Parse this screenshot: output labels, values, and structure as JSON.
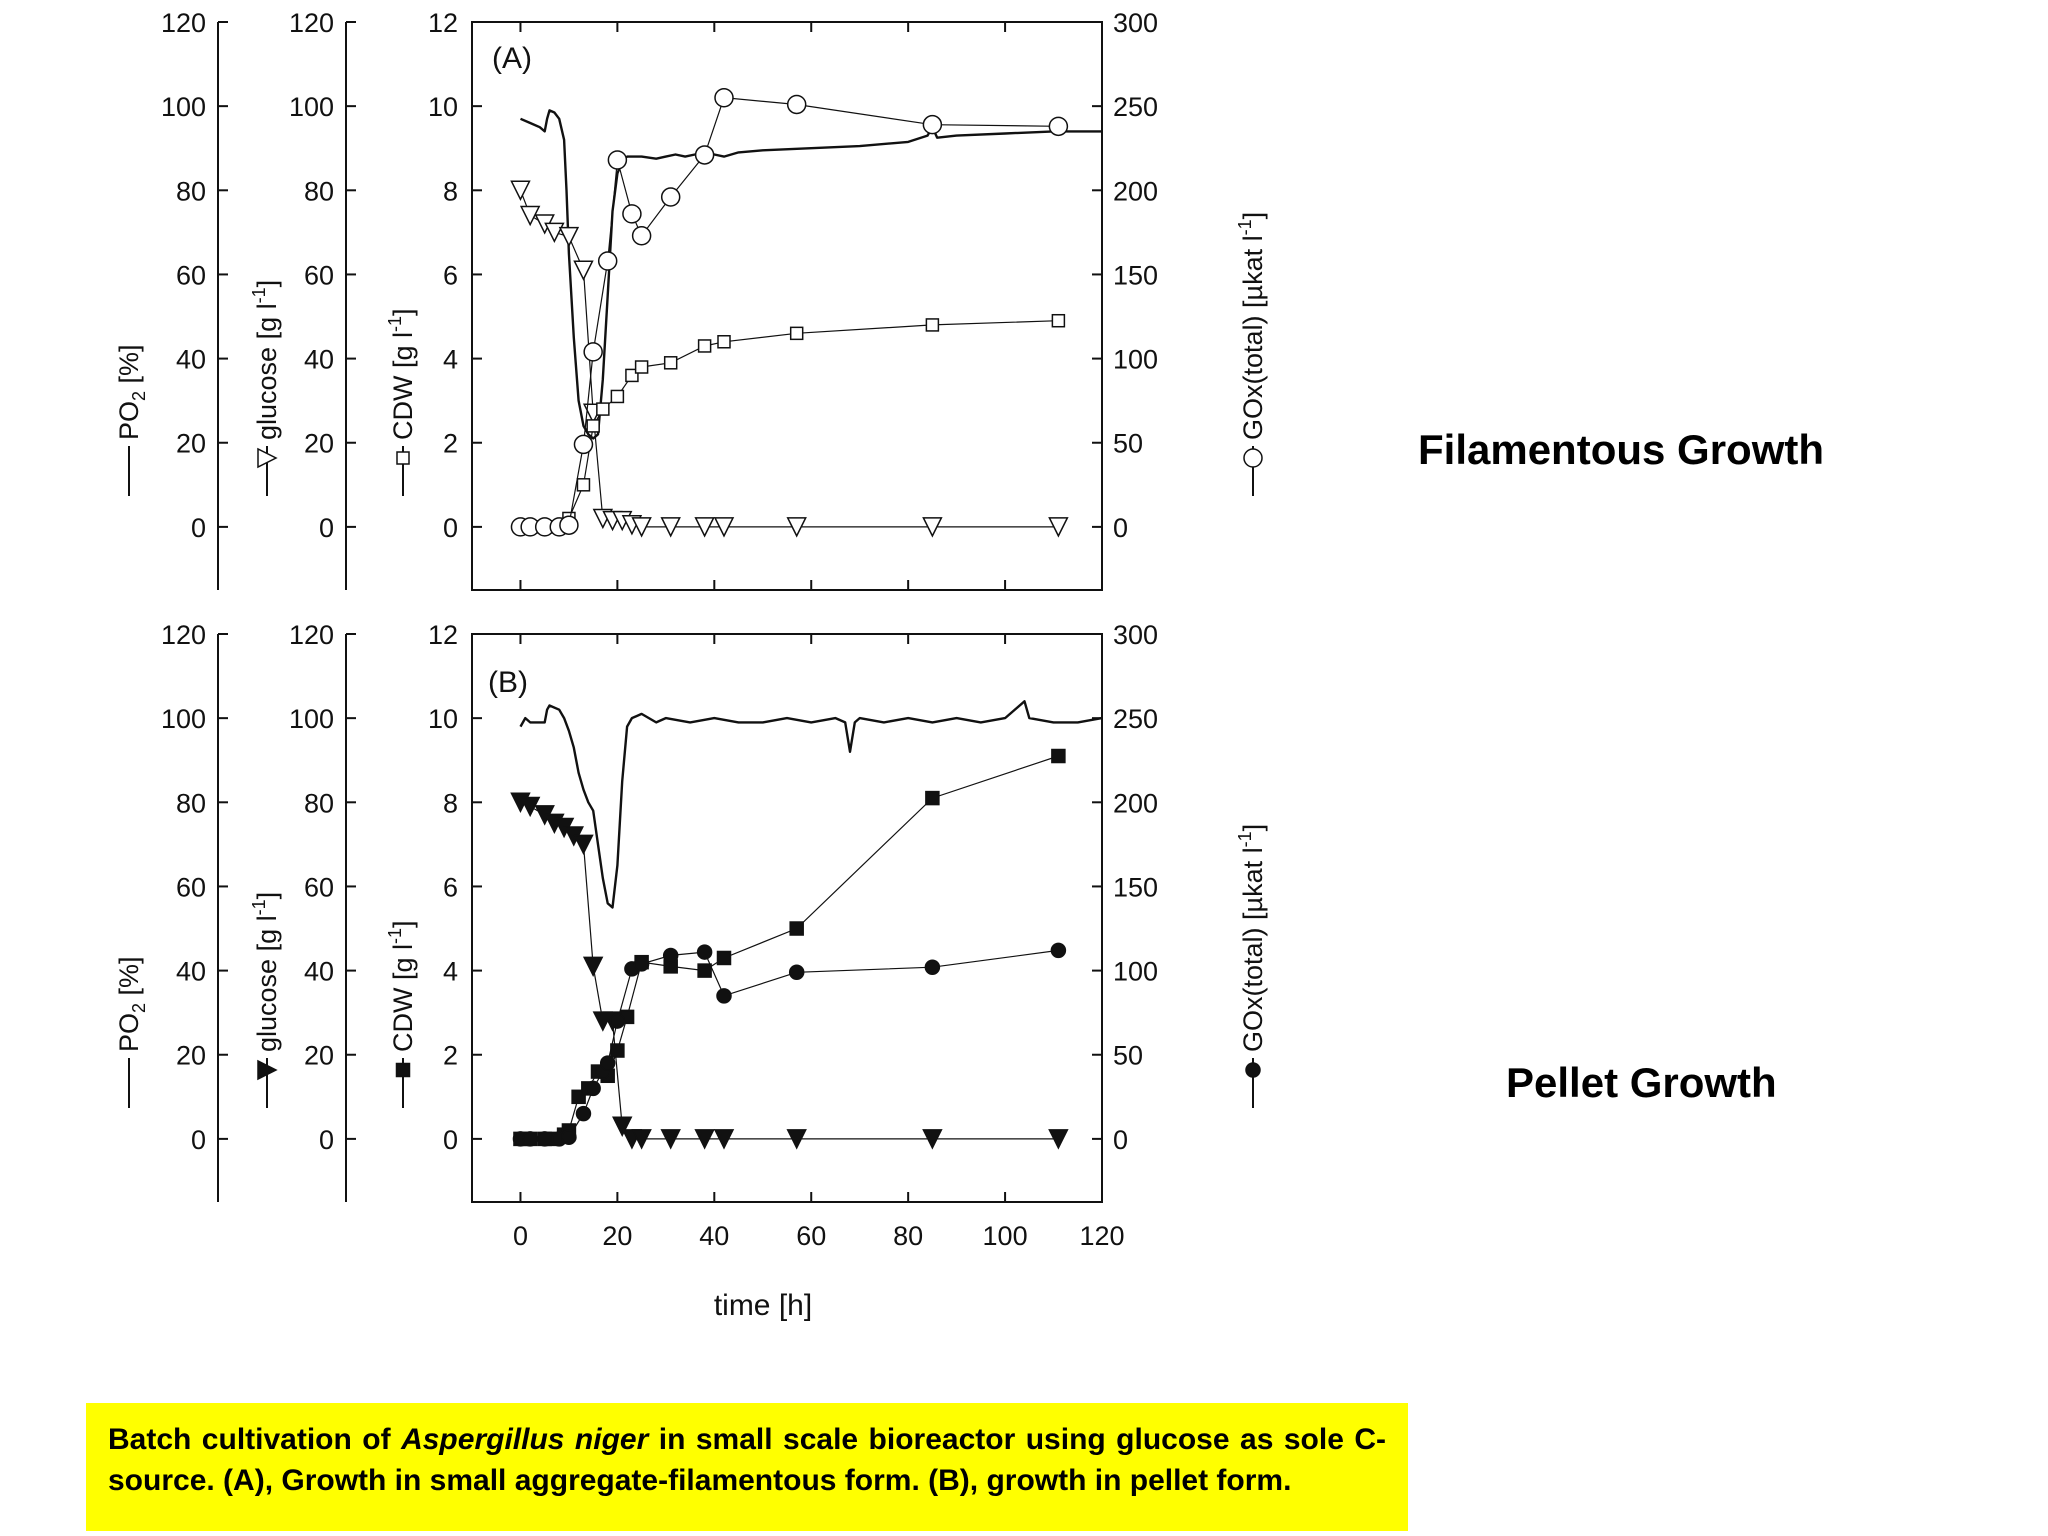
{
  "colors": {
    "background": "#ffffff",
    "ink": "#111111",
    "caption_bg": "#ffff00"
  },
  "labels": {
    "filamentous": "Filamentous Growth",
    "pellet": "Pellet Growth"
  },
  "caption": {
    "part1": "Batch cultivation of ",
    "species": "Aspergillus niger",
    "part2": " in small scale bioreactor using glucose as sole C-source. (A), Growth in small aggregate-filamentous form. (B), growth in pellet form."
  },
  "chart_data": [
    {
      "type": "line",
      "panel_label": "(A)",
      "xlabel": "time [h]",
      "xlim": [
        -10,
        120
      ],
      "x_ticks": [
        0,
        20,
        40,
        60,
        80,
        100,
        120
      ],
      "axes": {
        "po2": {
          "label": "PO",
          "label_sub": "2",
          "label_tail": " [%]",
          "ylim": [
            -15,
            120
          ],
          "ticks": [
            0,
            20,
            40,
            60,
            80,
            100,
            120
          ]
        },
        "glucose": {
          "label": "glucose [g l",
          "label_sup": "-1",
          "label_tail": "]",
          "ylim": [
            -15,
            120
          ],
          "ticks": [
            0,
            20,
            40,
            60,
            80,
            100,
            120
          ]
        },
        "cdw": {
          "label": "CDW [g l",
          "label_sup": "-1",
          "label_tail": "]",
          "ylim": [
            -1.5,
            12
          ],
          "ticks": [
            0,
            2,
            4,
            6,
            8,
            10,
            12
          ]
        },
        "gox": {
          "label": "GOx(total) [µkat l",
          "label_sup": "-1",
          "label_tail": "]",
          "ylim": [
            -37.5,
            300
          ],
          "ticks": [
            0,
            50,
            100,
            150,
            200,
            250,
            300
          ]
        }
      },
      "series": [
        {
          "id": "po2",
          "marker": "line",
          "x": [
            0,
            2,
            4,
            5,
            5.5,
            6,
            7,
            8,
            9,
            9.5,
            10,
            11,
            12,
            13,
            14,
            15,
            16,
            17,
            18,
            19,
            20,
            21,
            22,
            25,
            28,
            30,
            32,
            34,
            36,
            38,
            40,
            42,
            45,
            50,
            60,
            70,
            80,
            84,
            85,
            86,
            90,
            100,
            110,
            120
          ],
          "y": [
            97,
            96,
            95,
            94,
            97,
            99,
            98.5,
            97,
            92,
            80,
            65,
            45,
            30,
            24,
            22,
            21,
            22,
            35,
            55,
            75,
            84,
            87,
            88,
            88,
            87.5,
            88,
            88.5,
            88,
            88.5,
            88,
            88.5,
            88,
            89,
            89.5,
            90,
            90.5,
            91.5,
            93,
            95,
            92.5,
            93,
            93.5,
            94,
            94
          ]
        },
        {
          "id": "glucose",
          "marker": "triangle-down-open",
          "x": [
            0,
            2,
            5,
            7,
            10,
            13,
            15,
            17,
            19,
            21,
            23,
            25,
            31,
            38,
            42,
            57,
            85,
            111
          ],
          "y": [
            80,
            74,
            72,
            70,
            69,
            61,
            27,
            2,
            1.5,
            1.5,
            0.5,
            0,
            0,
            0,
            0,
            0,
            0,
            0
          ]
        },
        {
          "id": "cdw",
          "marker": "square-open",
          "x": [
            0,
            2,
            4,
            6,
            8,
            10,
            13,
            15,
            17,
            20,
            23,
            25,
            31,
            38,
            42,
            57,
            85,
            111
          ],
          "y": [
            0,
            0,
            0,
            0,
            0,
            0.2,
            1,
            2.4,
            2.8,
            3.1,
            3.6,
            3.8,
            3.9,
            4.3,
            4.4,
            4.6,
            4.8,
            4.9
          ]
        },
        {
          "id": "gox",
          "marker": "circle-open",
          "x": [
            0,
            2,
            5,
            8,
            10,
            13,
            15,
            18,
            20,
            23,
            25,
            31,
            38,
            42,
            57,
            85,
            111
          ],
          "y": [
            0,
            0,
            0,
            0,
            1,
            49,
            104,
            158,
            218,
            186,
            173,
            196,
            221,
            255,
            251,
            239,
            238
          ]
        }
      ]
    },
    {
      "type": "line",
      "panel_label": "(B)",
      "xlabel": "time [h]",
      "xlim": [
        -10,
        120
      ],
      "x_ticks": [
        0,
        20,
        40,
        60,
        80,
        100,
        120
      ],
      "axes": {
        "po2": {
          "label": "PO",
          "label_sub": "2",
          "label_tail": " [%]",
          "ylim": [
            -15,
            120
          ],
          "ticks": [
            0,
            20,
            40,
            60,
            80,
            100,
            120
          ]
        },
        "glucose": {
          "label": "glucose [g l",
          "label_sup": "-1",
          "label_tail": "]",
          "ylim": [
            -15,
            120
          ],
          "ticks": [
            0,
            20,
            40,
            60,
            80,
            100,
            120
          ]
        },
        "cdw": {
          "label": "CDW [g l",
          "label_sup": "-1",
          "label_tail": "]",
          "ylim": [
            -1.5,
            12
          ],
          "ticks": [
            0,
            2,
            4,
            6,
            8,
            10,
            12
          ]
        },
        "gox": {
          "label": "GOx(total) [µkat l",
          "label_sup": "-1",
          "label_tail": "]",
          "ylim": [
            -37.5,
            300
          ],
          "ticks": [
            0,
            50,
            100,
            150,
            200,
            250,
            300
          ]
        }
      },
      "series": [
        {
          "id": "po2",
          "marker": "line",
          "x": [
            0,
            1,
            2,
            4,
            5,
            5.5,
            6,
            8,
            9,
            10,
            11,
            12,
            13,
            14,
            15,
            16,
            17,
            18,
            19,
            20,
            21,
            22,
            23,
            25,
            28,
            30,
            35,
            40,
            45,
            50,
            55,
            60,
            65,
            67,
            68,
            69,
            70,
            75,
            80,
            85,
            90,
            95,
            100,
            104,
            105,
            110,
            115,
            120
          ],
          "y": [
            98,
            100,
            99,
            99,
            99,
            102,
            103,
            102,
            100,
            97,
            93,
            87,
            83,
            80,
            78,
            70,
            62,
            56,
            55,
            65,
            85,
            98,
            100,
            101,
            99,
            100,
            99,
            100,
            99,
            99,
            100,
            99,
            100,
            99,
            92,
            99,
            100,
            99,
            100,
            99,
            100,
            99,
            100,
            104,
            100,
            99,
            99,
            100
          ]
        },
        {
          "id": "glucose",
          "marker": "triangle-down-filled",
          "x": [
            0,
            2,
            5,
            7,
            9,
            11,
            13,
            15,
            17,
            19,
            21,
            23,
            25,
            31,
            38,
            42,
            57,
            85,
            111
          ],
          "y": [
            80,
            79,
            77,
            75,
            74,
            72,
            70,
            41,
            28,
            28,
            3,
            0,
            0,
            0,
            0,
            0,
            0,
            0,
            0
          ]
        },
        {
          "id": "cdw",
          "marker": "square-filled",
          "x": [
            0,
            2,
            5,
            7,
            9,
            10,
            12,
            14,
            16,
            18,
            20,
            22,
            25,
            31,
            38,
            42,
            57,
            85,
            111
          ],
          "y": [
            0,
            0,
            0,
            0,
            0.1,
            0.2,
            1,
            1.2,
            1.6,
            1.5,
            2.1,
            2.9,
            4.2,
            4.1,
            4.0,
            4.3,
            5.0,
            8.1,
            9.1
          ]
        },
        {
          "id": "gox",
          "marker": "circle-filled",
          "x": [
            0,
            2,
            5,
            8,
            10,
            13,
            15,
            17,
            18,
            20,
            23,
            25,
            31,
            38,
            42,
            57,
            85,
            111
          ],
          "y": [
            0,
            0,
            0,
            0,
            1,
            15,
            30,
            40,
            45,
            70,
            101,
            104,
            109,
            111,
            85,
            99,
            102,
            112
          ]
        }
      ]
    }
  ]
}
